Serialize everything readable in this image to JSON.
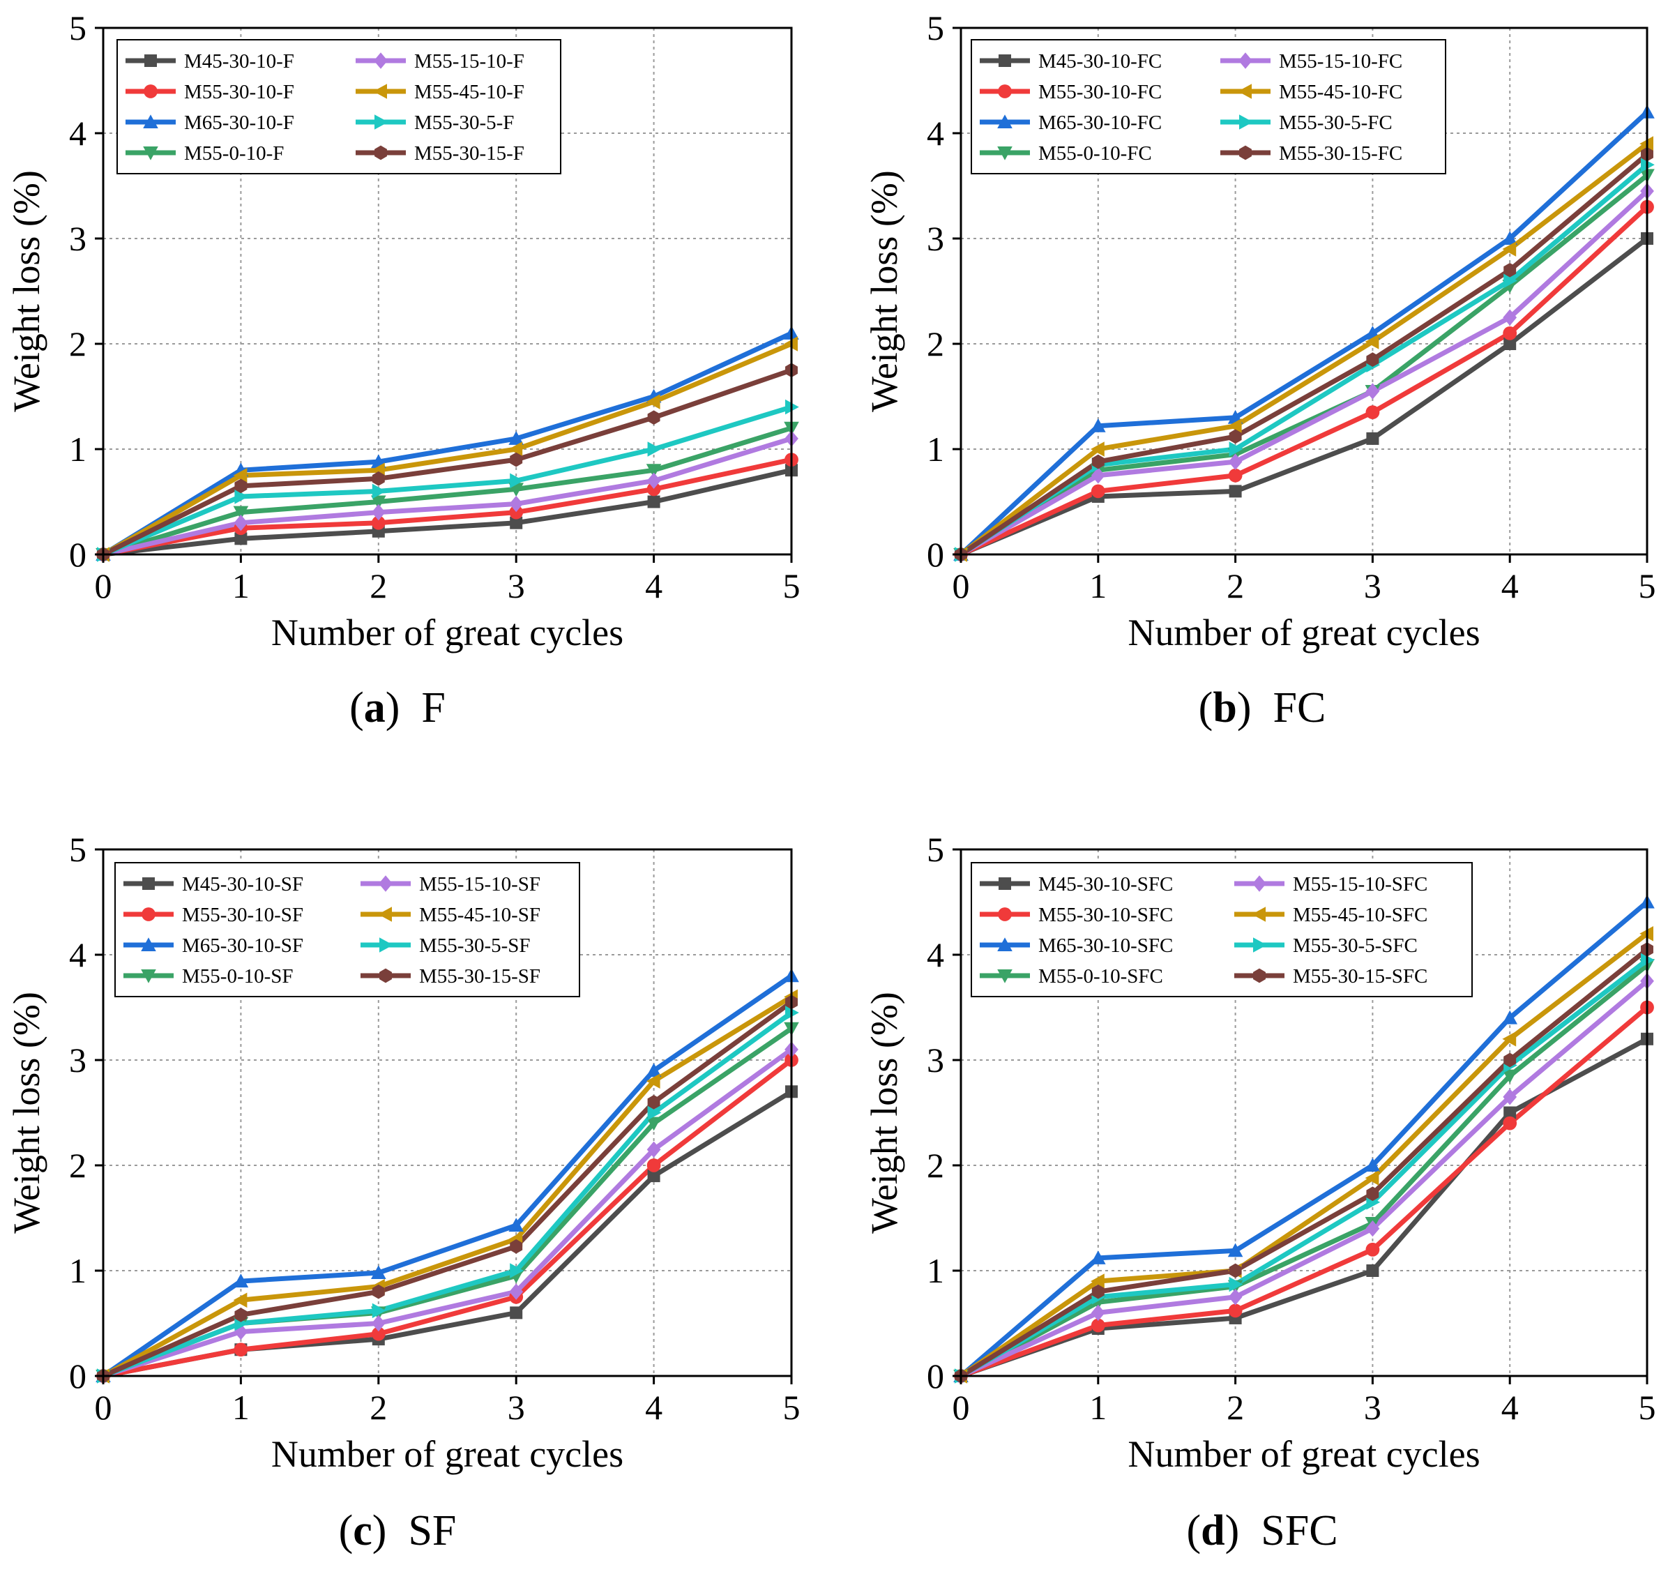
{
  "figure": {
    "series_colors": [
      "#4d4d4d",
      "#f03a3a",
      "#1f6fd8",
      "#3aa366",
      "#b07ae0",
      "#c9960a",
      "#1ec8c2",
      "#7a3f3a"
    ],
    "series_markers": [
      "square",
      "circle",
      "triangle-up",
      "triangle-down",
      "diamond",
      "triangle-left",
      "triangle-right",
      "hexagon"
    ]
  },
  "chart_data": [
    {
      "type": "line",
      "panel_letter": "a",
      "title": "F",
      "xlabel": "Number of great cycles",
      "ylabel": "Weight loss (%)",
      "xlim": [
        0,
        5
      ],
      "ylim": [
        0,
        5
      ],
      "x": [
        0,
        1,
        2,
        3,
        4,
        5
      ],
      "x_ticks": [
        "0",
        "1",
        "2",
        "3",
        "4",
        "5"
      ],
      "y_ticks": [
        "0",
        "1",
        "2",
        "3",
        "4",
        "5"
      ],
      "grid": true,
      "legend_position": "top-left",
      "series": [
        {
          "name": "M45-30-10-F",
          "values": [
            0,
            0.15,
            0.22,
            0.3,
            0.5,
            0.8
          ]
        },
        {
          "name": "M55-30-10-F",
          "values": [
            0,
            0.25,
            0.3,
            0.4,
            0.62,
            0.9
          ]
        },
        {
          "name": "M65-30-10-F",
          "values": [
            0,
            0.8,
            0.88,
            1.1,
            1.5,
            2.1
          ]
        },
        {
          "name": "M55-0-10-F",
          "values": [
            0,
            0.4,
            0.5,
            0.62,
            0.8,
            1.2
          ]
        },
        {
          "name": "M55-15-10-F",
          "values": [
            0,
            0.3,
            0.4,
            0.48,
            0.7,
            1.1
          ]
        },
        {
          "name": "M55-45-10-F",
          "values": [
            0,
            0.75,
            0.8,
            1.0,
            1.45,
            2.0
          ]
        },
        {
          "name": "M55-30-5-F",
          "values": [
            0,
            0.55,
            0.6,
            0.7,
            1.0,
            1.4
          ]
        },
        {
          "name": "M55-30-15-F",
          "values": [
            0,
            0.65,
            0.72,
            0.9,
            1.3,
            1.75
          ]
        }
      ]
    },
    {
      "type": "line",
      "panel_letter": "b",
      "title": "FC",
      "xlabel": "Number of great cycles",
      "ylabel": "Weight loss (%)",
      "xlim": [
        0,
        5
      ],
      "ylim": [
        0,
        5
      ],
      "x": [
        0,
        1,
        2,
        3,
        4,
        5
      ],
      "x_ticks": [
        "0",
        "1",
        "2",
        "3",
        "4",
        "5"
      ],
      "y_ticks": [
        "0",
        "1",
        "2",
        "3",
        "4",
        "5"
      ],
      "grid": true,
      "legend_position": "top-left",
      "series": [
        {
          "name": "M45-30-10-FC",
          "values": [
            0,
            0.55,
            0.6,
            1.1,
            2.0,
            3.0
          ]
        },
        {
          "name": "M55-30-10-FC",
          "values": [
            0,
            0.6,
            0.75,
            1.35,
            2.1,
            3.3
          ]
        },
        {
          "name": "M65-30-10-FC",
          "values": [
            0,
            1.22,
            1.3,
            2.1,
            3.0,
            4.2
          ]
        },
        {
          "name": "M55-0-10-FC",
          "values": [
            0,
            0.8,
            0.95,
            1.55,
            2.55,
            3.6
          ]
        },
        {
          "name": "M55-15-10-FC",
          "values": [
            0,
            0.75,
            0.88,
            1.55,
            2.25,
            3.45
          ]
        },
        {
          "name": "M55-45-10-FC",
          "values": [
            0,
            1.0,
            1.22,
            2.02,
            2.9,
            3.9
          ]
        },
        {
          "name": "M55-30-5-FC",
          "values": [
            0,
            0.85,
            1.0,
            1.8,
            2.6,
            3.7
          ]
        },
        {
          "name": "M55-30-15-FC",
          "values": [
            0,
            0.88,
            1.12,
            1.85,
            2.7,
            3.8
          ]
        }
      ]
    },
    {
      "type": "line",
      "panel_letter": "c",
      "title": "SF",
      "xlabel": "Number of great cycles",
      "ylabel": "Weight loss (%)",
      "xlim": [
        0,
        5
      ],
      "ylim": [
        0,
        5
      ],
      "x": [
        0,
        1,
        2,
        3,
        4,
        5
      ],
      "x_ticks": [
        "0",
        "1",
        "2",
        "3",
        "4",
        "5"
      ],
      "y_ticks": [
        "0",
        "1",
        "2",
        "3",
        "4",
        "5"
      ],
      "grid": true,
      "legend_position": "top-left",
      "series": [
        {
          "name": "M45-30-10-SF",
          "values": [
            0,
            0.25,
            0.35,
            0.6,
            1.9,
            2.7
          ]
        },
        {
          "name": "M55-30-10-SF",
          "values": [
            0,
            0.25,
            0.4,
            0.75,
            2.0,
            3.0
          ]
        },
        {
          "name": "M65-30-10-SF",
          "values": [
            0,
            0.9,
            0.98,
            1.43,
            2.9,
            3.8
          ]
        },
        {
          "name": "M55-0-10-SF",
          "values": [
            0,
            0.5,
            0.6,
            0.95,
            2.4,
            3.3
          ]
        },
        {
          "name": "M55-15-10-SF",
          "values": [
            0,
            0.42,
            0.5,
            0.8,
            2.15,
            3.1
          ]
        },
        {
          "name": "M55-45-10-SF",
          "values": [
            0,
            0.72,
            0.85,
            1.3,
            2.8,
            3.6
          ]
        },
        {
          "name": "M55-30-5-SF",
          "values": [
            0,
            0.5,
            0.62,
            1.0,
            2.5,
            3.45
          ]
        },
        {
          "name": "M55-30-15-SF",
          "values": [
            0,
            0.58,
            0.8,
            1.23,
            2.6,
            3.55
          ]
        }
      ]
    },
    {
      "type": "line",
      "panel_letter": "d",
      "title": "SFC",
      "xlabel": "Number of great cycles",
      "ylabel": "Weight loss (%)",
      "xlim": [
        0,
        5
      ],
      "ylim": [
        0,
        5
      ],
      "x": [
        0,
        1,
        2,
        3,
        4,
        5
      ],
      "x_ticks": [
        "0",
        "1",
        "2",
        "3",
        "4",
        "5"
      ],
      "y_ticks": [
        "0",
        "1",
        "2",
        "3",
        "4",
        "5"
      ],
      "grid": true,
      "legend_position": "top-left",
      "series": [
        {
          "name": "M45-30-10-SFC",
          "values": [
            0,
            0.45,
            0.55,
            1.0,
            2.5,
            3.2
          ]
        },
        {
          "name": "M55-30-10-SFC",
          "values": [
            0,
            0.48,
            0.62,
            1.2,
            2.4,
            3.5
          ]
        },
        {
          "name": "M65-30-10-SFC",
          "values": [
            0,
            1.12,
            1.19,
            2.0,
            3.4,
            4.5
          ]
        },
        {
          "name": "M55-0-10-SFC",
          "values": [
            0,
            0.7,
            0.85,
            1.45,
            2.85,
            3.9
          ]
        },
        {
          "name": "M55-15-10-SFC",
          "values": [
            0,
            0.6,
            0.75,
            1.4,
            2.65,
            3.75
          ]
        },
        {
          "name": "M55-45-10-SFC",
          "values": [
            0,
            0.9,
            1.0,
            1.88,
            3.2,
            4.2
          ]
        },
        {
          "name": "M55-30-5-SFC",
          "values": [
            0,
            0.75,
            0.87,
            1.65,
            2.95,
            3.95
          ]
        },
        {
          "name": "M55-30-15-SFC",
          "values": [
            0,
            0.8,
            1.0,
            1.73,
            3.0,
            4.05
          ]
        }
      ]
    }
  ]
}
